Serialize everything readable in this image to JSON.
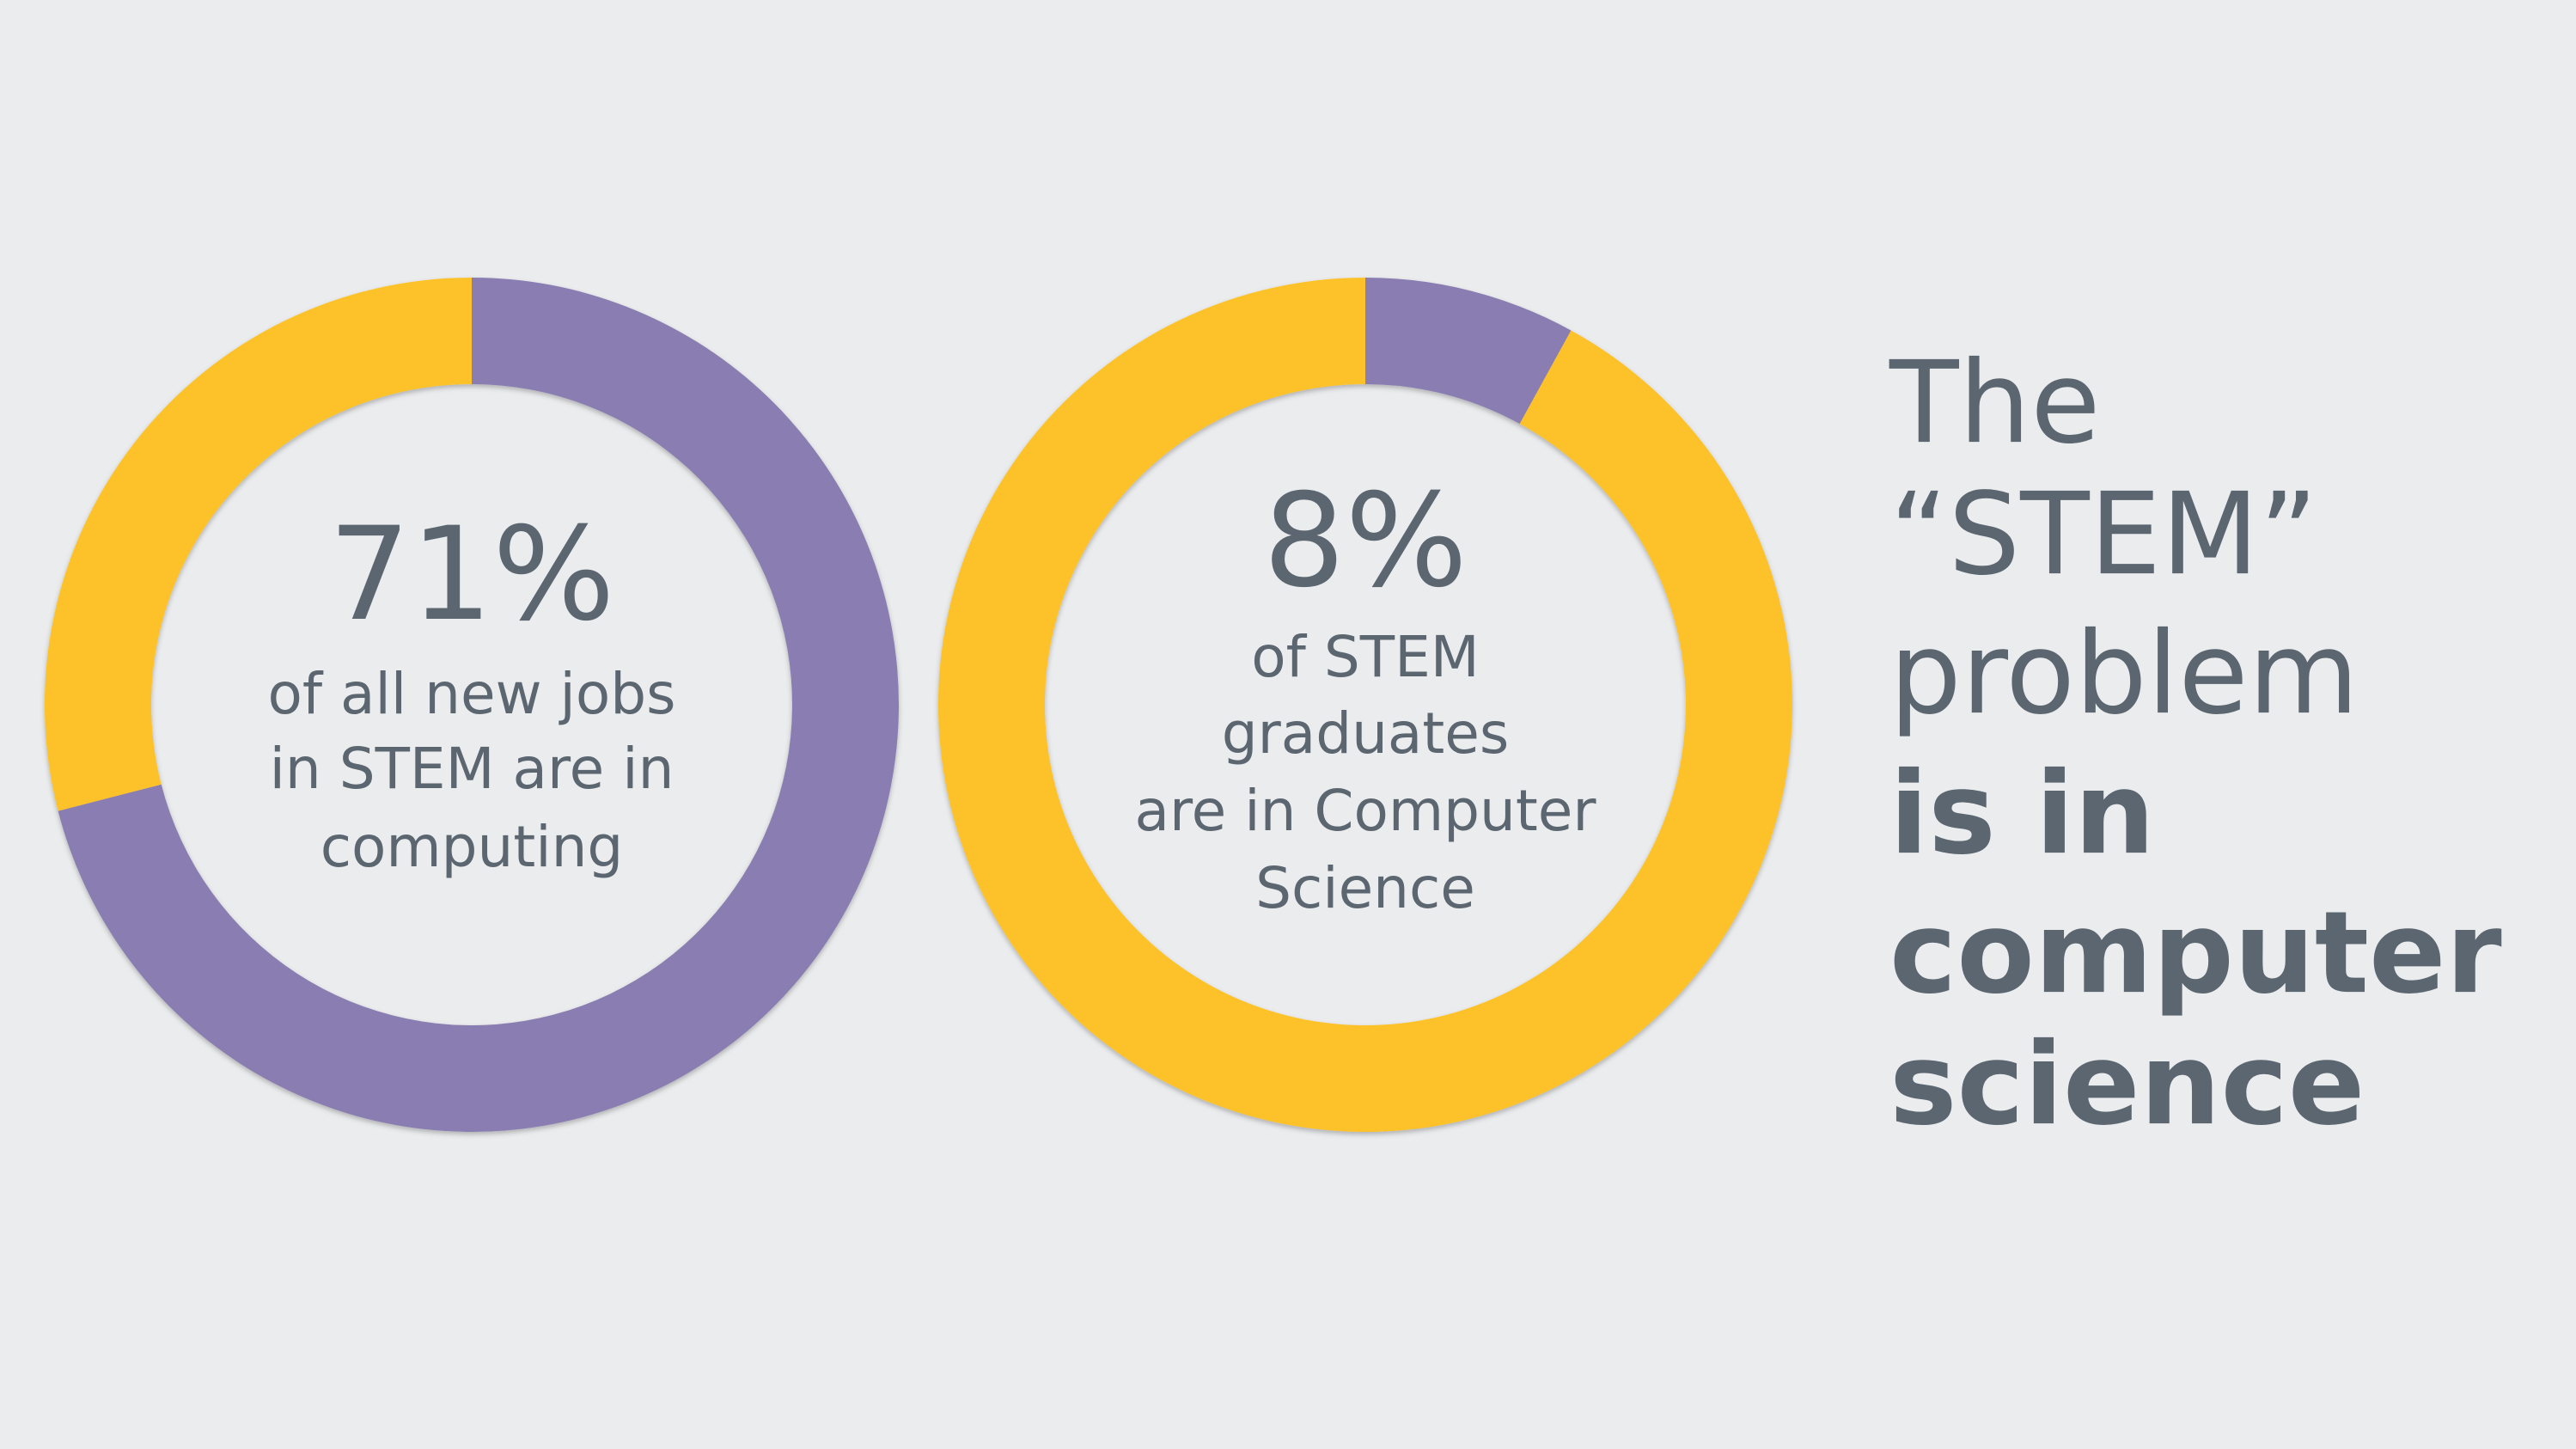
{
  "chart_data": [
    {
      "type": "donut",
      "categories": [
        null,
        null
      ],
      "values": [
        71,
        29
      ],
      "value_labels": [
        "71%",
        null
      ],
      "colors": [
        "#8a7db1",
        "#fdc22a"
      ],
      "caption": [
        "of all new jobs",
        "in STEM are in",
        "computing"
      ]
    },
    {
      "type": "donut",
      "categories": [
        null,
        null
      ],
      "values": [
        8,
        92
      ],
      "value_labels": [
        "8%",
        null
      ],
      "colors": [
        "#8a7db1",
        "#fdc22a"
      ],
      "caption": [
        "of STEM",
        "graduates",
        "are in Computer",
        "Science"
      ]
    }
  ],
  "headline": {
    "regular": [
      "The",
      "“STEM”",
      "problem"
    ],
    "bold": [
      "is in",
      "computer",
      "science"
    ]
  }
}
